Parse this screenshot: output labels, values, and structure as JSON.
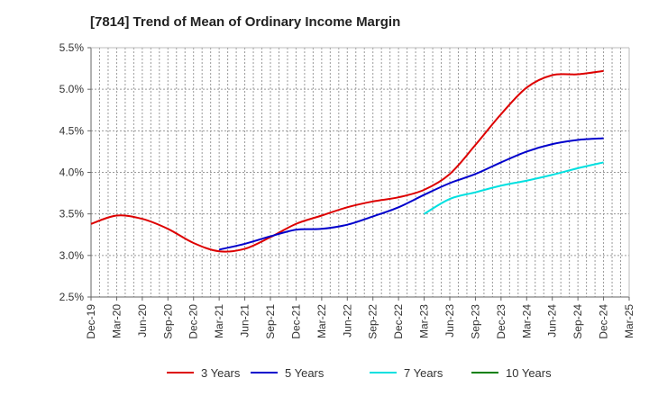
{
  "chart_data": {
    "type": "line",
    "title": "[7814]  Trend of Mean of Ordinary Income Margin",
    "x": [
      "Dec-19",
      "Mar-20",
      "Jun-20",
      "Sep-20",
      "Dec-20",
      "Mar-21",
      "Jun-21",
      "Sep-21",
      "Dec-21",
      "Mar-22",
      "Jun-22",
      "Sep-22",
      "Dec-22",
      "Mar-23",
      "Jun-23",
      "Sep-23",
      "Dec-23",
      "Mar-24",
      "Jun-24",
      "Sep-24",
      "Dec-24",
      "Mar-25"
    ],
    "y_ticks": [
      "2.5%",
      "3.0%",
      "3.5%",
      "4.0%",
      "4.5%",
      "5.0%",
      "5.5%"
    ],
    "ylim": [
      2.5,
      5.5
    ],
    "grid": true,
    "legend_position": "bottom",
    "series": [
      {
        "name": "3 Years",
        "color": "#dd0000",
        "values": [
          3.38,
          3.48,
          3.44,
          3.32,
          3.15,
          3.05,
          3.08,
          3.22,
          3.38,
          3.48,
          3.58,
          3.65,
          3.7,
          3.79,
          3.98,
          4.33,
          4.7,
          5.02,
          5.17,
          5.18,
          5.22,
          null
        ]
      },
      {
        "name": "5 Years",
        "color": "#0000cc",
        "values": [
          null,
          null,
          null,
          null,
          null,
          3.07,
          3.14,
          3.23,
          3.31,
          3.32,
          3.37,
          3.47,
          3.58,
          3.73,
          3.87,
          3.98,
          4.12,
          4.25,
          4.34,
          4.39,
          4.41,
          null
        ]
      },
      {
        "name": "7 Years",
        "color": "#00e0e0",
        "values": [
          null,
          null,
          null,
          null,
          null,
          null,
          null,
          null,
          null,
          null,
          null,
          null,
          null,
          3.5,
          3.68,
          3.76,
          3.84,
          3.9,
          3.97,
          4.05,
          4.12,
          null
        ]
      },
      {
        "name": "10 Years",
        "color": "#008000",
        "values": [
          null,
          null,
          null,
          null,
          null,
          null,
          null,
          null,
          null,
          null,
          null,
          null,
          null,
          null,
          null,
          null,
          null,
          null,
          null,
          null,
          null,
          null
        ]
      }
    ]
  }
}
